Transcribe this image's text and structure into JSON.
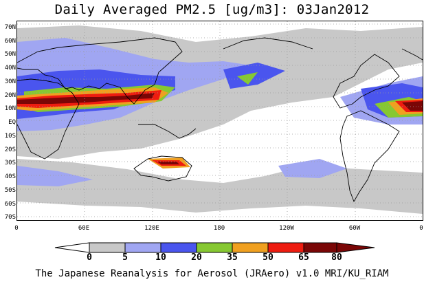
{
  "title": "Daily Averaged PM2.5 [ug/m3]: 03Jan2012",
  "footer": "The Japanese Reanalysis for Aerosol (JRAero) v1.0 MRI/KU_RIAM",
  "lat_labels": [
    "70N",
    "60N",
    "50N",
    "40N",
    "30N",
    "20N",
    "10N",
    "EQ",
    "10S",
    "20S",
    "30S",
    "40S",
    "50S",
    "60S",
    "70S"
  ],
  "lon_labels": [
    "0",
    "60E",
    "120E",
    "180",
    "120W",
    "60W",
    "0"
  ],
  "colorbar": {
    "ticks": [
      "0",
      "5",
      "10",
      "20",
      "35",
      "50",
      "65",
      "80"
    ],
    "colors": [
      "#ffffff",
      "#c8c8c8",
      "#a0a6f2",
      "#4a55ee",
      "#86c832",
      "#f0a020",
      "#ee1c10",
      "#7a0606"
    ]
  }
}
